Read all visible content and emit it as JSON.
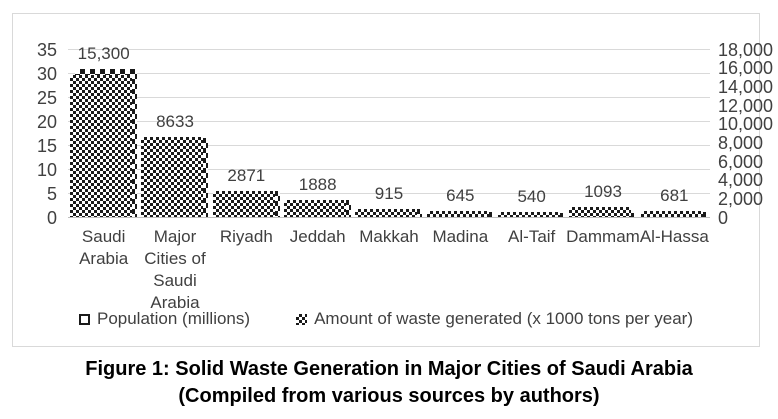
{
  "colors": {
    "text": "#404040",
    "grid": "#d9d9d9",
    "axis_line": "#bfbfbf",
    "bar": "#1a1a1a",
    "border": "#d9d9d9",
    "caption": "#000000"
  },
  "chart_data": {
    "type": "bar",
    "title": "",
    "categories": [
      "Saudi Arabia",
      "Major Cities of Saudi Arabia",
      "Riyadh",
      "Jeddah",
      "Makkah",
      "Madina",
      "Al-Taif",
      "Dammam",
      "Al-Hassa"
    ],
    "category_label_lines": [
      [
        "Saudi",
        "Arabia"
      ],
      [
        "Major",
        "Cities of",
        "Saudi",
        "Arabia"
      ],
      [
        "Riyadh"
      ],
      [
        "Jeddah"
      ],
      [
        "Makkah"
      ],
      [
        "Madina"
      ],
      [
        "Al-Taif"
      ],
      [
        "Dammam"
      ],
      [
        "Al-Hassa"
      ]
    ],
    "series": [
      {
        "name": "Population (millions)",
        "axis": "left",
        "pattern": "dotted",
        "values": [
          31,
          16.5,
          5.5,
          3.6,
          1.7,
          1.2,
          1.0,
          1.0,
          1.1
        ]
      },
      {
        "name": "Amount of waste generated (x 1000 tons per year)",
        "axis": "right",
        "pattern": "checker",
        "values": [
          15300,
          8633,
          2871,
          1888,
          915,
          645,
          540,
          1093,
          681
        ]
      }
    ],
    "data_labels": [
      "15,300",
      "8633",
      "2871",
      "1888",
      "915",
      "645",
      "540",
      "1093",
      "681"
    ],
    "left_axis": {
      "min": 0,
      "max": 35,
      "ticks": [
        "35",
        "30",
        "25",
        "20",
        "15",
        "10",
        "5",
        "0"
      ]
    },
    "right_axis": {
      "min": 0,
      "max": 18000,
      "ticks": [
        "18,000",
        "16,000",
        "14,000",
        "12,000",
        "10,000",
        "8,000",
        "6,000",
        "4,000",
        "2,000",
        "0"
      ]
    },
    "grid": true,
    "legend_position": "bottom"
  },
  "caption": {
    "line1": "Figure 1: Solid Waste Generation in Major Cities of Saudi Arabia",
    "line2": "(Compiled from various sources by authors)"
  }
}
